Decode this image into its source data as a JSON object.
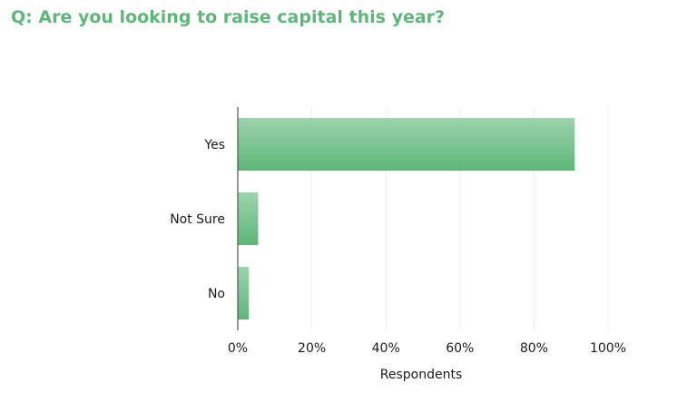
{
  "chart_data": {
    "type": "bar",
    "orientation": "horizontal",
    "title": "Q: Are you looking to raise capital this year?",
    "categories": [
      "Yes",
      "Not Sure",
      "No"
    ],
    "values": [
      91,
      5.5,
      3
    ],
    "xlabel": "Respondents",
    "ylabel": "",
    "xlim": [
      0,
      100
    ],
    "ticks": [
      "0%",
      "20%",
      "40%",
      "60%",
      "80%",
      "100%"
    ],
    "tick_values": [
      0,
      20,
      40,
      60,
      80,
      100
    ],
    "grid": true,
    "colors": {
      "title": "#5cb779",
      "bar_light": "#9dd3ad",
      "bar_dark": "#5cb778",
      "grid": "#eeeeee",
      "axis": "#555555"
    }
  }
}
